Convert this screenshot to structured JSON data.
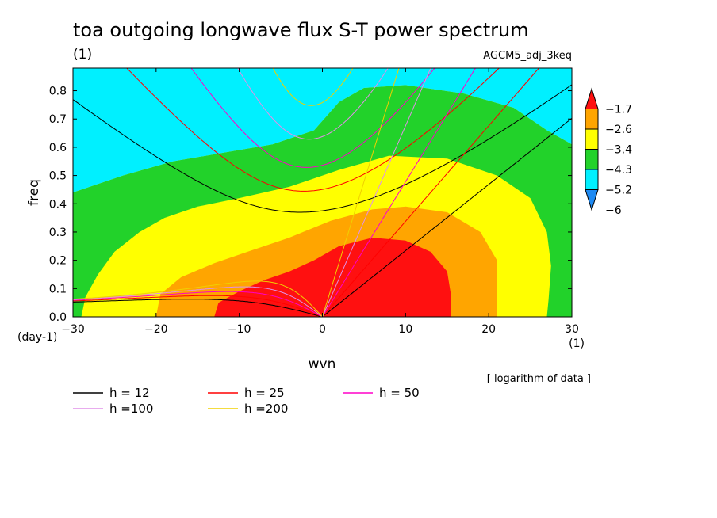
{
  "chart_data": {
    "type": "heatmap",
    "title": "toa outgoing longwave flux S-T power spectrum",
    "subtitle_left": "(1)",
    "subtitle_right": "AGCM5_adj_3keq",
    "xlabel": "wvn",
    "ylabel": "freq",
    "x_unit_label": "(1)",
    "y_unit_label": "(day-1)",
    "xlim": [
      -30,
      30
    ],
    "ylim": [
      0,
      0.88
    ],
    "x_ticks": [
      -30,
      -20,
      -10,
      0,
      10,
      20,
      30
    ],
    "x_tick_labels": [
      "−30",
      "−20",
      "−10",
      "0",
      "10",
      "20",
      "30"
    ],
    "y_ticks": [
      0.0,
      0.1,
      0.2,
      0.3,
      0.4,
      0.5,
      0.6,
      0.7,
      0.8
    ],
    "y_tick_labels": [
      "0.0",
      "0.1",
      "0.2",
      "0.3",
      "0.4",
      "0.5",
      "0.6",
      "0.7",
      "0.8"
    ],
    "note": "[ logarithm of data ]",
    "colorbar": {
      "levels": [
        -6,
        -5.2,
        -4.3,
        -3.4,
        -2.6,
        -1.7
      ],
      "labels": [
        "−6",
        "−5.2",
        "−4.3",
        "−3.4",
        "−2.6",
        "−1.7"
      ],
      "colors": [
        "#1f8af2",
        "#00f0ff",
        "#22d22a",
        "#ffff00",
        "#ffa500",
        "#ff1010"
      ]
    },
    "fill_regions": [
      {
        "level": "below -6",
        "color": "#1f8af2",
        "points": [
          [
            -30,
            0.88
          ],
          [
            -30,
            0.67
          ],
          [
            -27,
            0.69
          ],
          [
            -23,
            0.74
          ],
          [
            -20,
            0.78
          ],
          [
            -16,
            0.82
          ],
          [
            -13,
            0.86
          ],
          [
            -11,
            0.88
          ]
        ]
      },
      {
        "level": "-6 to -5.2",
        "color": "#00f0ff",
        "points": [
          [
            -30,
            0.88
          ],
          [
            -30,
            0.44
          ],
          [
            -24,
            0.5
          ],
          [
            -18,
            0.55
          ],
          [
            -12,
            0.58
          ],
          [
            -6,
            0.61
          ],
          [
            -1,
            0.66
          ],
          [
            2,
            0.76
          ],
          [
            5,
            0.81
          ],
          [
            10,
            0.82
          ],
          [
            17,
            0.79
          ],
          [
            23,
            0.74
          ],
          [
            27,
            0.66
          ],
          [
            30,
            0.61
          ],
          [
            30,
            0.88
          ]
        ]
      },
      {
        "level": "-5.2 to -4.3",
        "color": "#22d22a",
        "points": [
          [
            -30,
            0.3
          ],
          [
            -30,
            0
          ],
          [
            30,
            0
          ],
          [
            30,
            0.61
          ],
          [
            27,
            0.66
          ],
          [
            23,
            0.74
          ],
          [
            17,
            0.79
          ],
          [
            10,
            0.82
          ],
          [
            5,
            0.81
          ],
          [
            2,
            0.76
          ],
          [
            -1,
            0.66
          ],
          [
            -6,
            0.61
          ],
          [
            -12,
            0.58
          ],
          [
            -18,
            0.55
          ],
          [
            -24,
            0.5
          ],
          [
            -30,
            0.44
          ]
        ]
      },
      {
        "level": "-4.3 to -3.4",
        "color": "#ffff00",
        "points": [
          [
            -29,
            0
          ],
          [
            -28.5,
            0.07
          ],
          [
            -27,
            0.15
          ],
          [
            -25,
            0.23
          ],
          [
            -22,
            0.3
          ],
          [
            -19,
            0.35
          ],
          [
            -15,
            0.39
          ],
          [
            -10,
            0.42
          ],
          [
            -4,
            0.46
          ],
          [
            2,
            0.52
          ],
          [
            8,
            0.57
          ],
          [
            15,
            0.56
          ],
          [
            21,
            0.5
          ],
          [
            25,
            0.42
          ],
          [
            27,
            0.3
          ],
          [
            27.5,
            0.18
          ],
          [
            27.2,
            0.06
          ],
          [
            27,
            0
          ]
        ]
      },
      {
        "level": "-3.4 to -2.6",
        "color": "#ffa500",
        "points": [
          [
            -20,
            0
          ],
          [
            -19.5,
            0.08
          ],
          [
            -17,
            0.14
          ],
          [
            -13,
            0.19
          ],
          [
            -9,
            0.23
          ],
          [
            -4,
            0.28
          ],
          [
            1,
            0.34
          ],
          [
            6,
            0.38
          ],
          [
            10,
            0.39
          ],
          [
            15,
            0.37
          ],
          [
            19,
            0.3
          ],
          [
            21,
            0.2
          ],
          [
            21,
            0
          ]
        ]
      },
      {
        "level": "above -2.6",
        "color": "#ff1010",
        "points": [
          [
            -13,
            0
          ],
          [
            -12.5,
            0.05
          ],
          [
            -10,
            0.09
          ],
          [
            -7,
            0.13
          ],
          [
            -4,
            0.16
          ],
          [
            -1,
            0.2
          ],
          [
            2,
            0.25
          ],
          [
            6,
            0.28
          ],
          [
            10,
            0.27
          ],
          [
            13,
            0.23
          ],
          [
            15,
            0.16
          ],
          [
            15.5,
            0.07
          ],
          [
            15.5,
            0
          ]
        ]
      }
    ],
    "series": [
      {
        "name": "h = 12",
        "color": "#000000",
        "equivalent_depth_m": 12
      },
      {
        "name": "h = 25",
        "color": "#ff0000",
        "equivalent_depth_m": 25
      },
      {
        "name": "h = 50",
        "color": "#ff00c8",
        "equivalent_depth_m": 50
      },
      {
        "name": "h =100",
        "color": "#e090e8",
        "equivalent_depth_m": 100
      },
      {
        "name": "h =200",
        "color": "#f0d000",
        "equivalent_depth_m": 200
      }
    ]
  }
}
